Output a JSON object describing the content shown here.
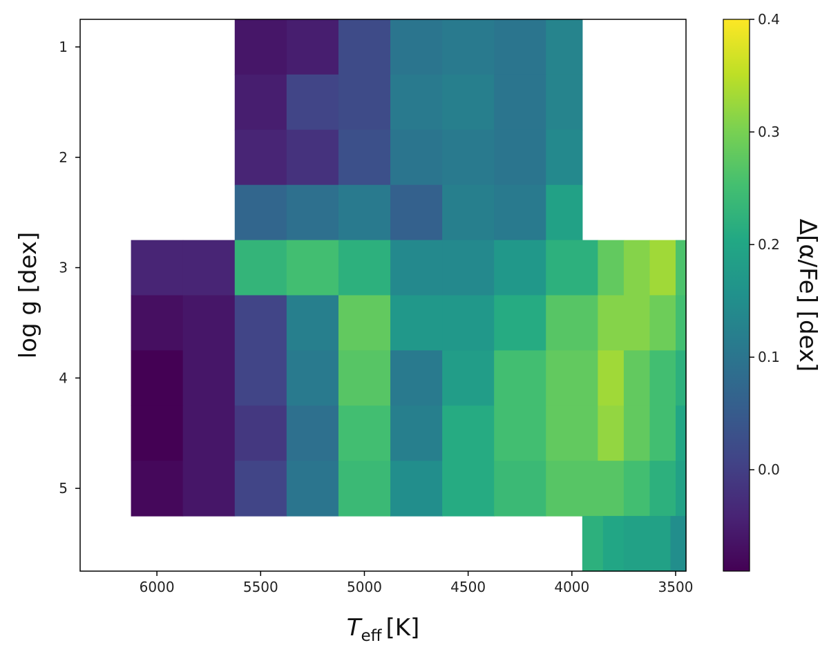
{
  "chart_data": {
    "type": "heatmap",
    "title": "",
    "xlabel": {
      "main": "T",
      "sub": "eff",
      "unit": "[K]"
    },
    "ylabel": "log g [dex]",
    "colorbar_label": "Δ[α/Fe] [dex]",
    "xlim": [
      6370,
      3450
    ],
    "ylim": [
      5.75,
      0.75
    ],
    "x_reversed": true,
    "y_reversed": true,
    "x_ticks": [
      {
        "value": 6000,
        "label": "6000"
      },
      {
        "value": 5500,
        "label": "5500"
      },
      {
        "value": 5000,
        "label": "5000"
      },
      {
        "value": 4500,
        "label": "4500"
      },
      {
        "value": 4000,
        "label": "4000"
      },
      {
        "value": 3500,
        "label": "3500"
      }
    ],
    "y_ticks": [
      {
        "value": 1,
        "label": "1"
      },
      {
        "value": 2,
        "label": "2"
      },
      {
        "value": 3,
        "label": "3"
      },
      {
        "value": 4,
        "label": "4"
      },
      {
        "value": 5,
        "label": "5"
      }
    ],
    "colorbar": {
      "min": -0.09,
      "max": 0.4,
      "colormap": "viridis",
      "ticks": [
        {
          "value": 0.0,
          "label": "0.0"
        },
        {
          "value": 0.1,
          "label": "0.1"
        },
        {
          "value": 0.2,
          "label": "0.2"
        },
        {
          "value": 0.3,
          "label": "0.3"
        },
        {
          "value": 0.4,
          "label": "0.4"
        }
      ]
    },
    "cells": [
      {
        "teff": [
          5625,
          5375
        ],
        "logg": [
          0.75,
          1.25
        ],
        "value": -0.06
      },
      {
        "teff": [
          5375,
          5125
        ],
        "logg": [
          0.75,
          1.25
        ],
        "value": -0.05
      },
      {
        "teff": [
          5125,
          4875
        ],
        "logg": [
          0.75,
          1.25
        ],
        "value": 0.02
      },
      {
        "teff": [
          4875,
          4625
        ],
        "logg": [
          0.75,
          1.25
        ],
        "value": 0.1
      },
      {
        "teff": [
          4625,
          4375
        ],
        "logg": [
          0.75,
          1.25
        ],
        "value": 0.11
      },
      {
        "teff": [
          4375,
          4125
        ],
        "logg": [
          0.75,
          1.25
        ],
        "value": 0.1
      },
      {
        "teff": [
          4125,
          3950
        ],
        "logg": [
          0.75,
          1.25
        ],
        "value": 0.13
      },
      {
        "teff": [
          5625,
          5375
        ],
        "logg": [
          1.25,
          1.75
        ],
        "value": -0.05
      },
      {
        "teff": [
          5375,
          5125
        ],
        "logg": [
          1.25,
          1.75
        ],
        "value": 0.01
      },
      {
        "teff": [
          5125,
          4875
        ],
        "logg": [
          1.25,
          1.75
        ],
        "value": 0.02
      },
      {
        "teff": [
          4875,
          4625
        ],
        "logg": [
          1.25,
          1.75
        ],
        "value": 0.11
      },
      {
        "teff": [
          4625,
          4375
        ],
        "logg": [
          1.25,
          1.75
        ],
        "value": 0.12
      },
      {
        "teff": [
          4375,
          4125
        ],
        "logg": [
          1.25,
          1.75
        ],
        "value": 0.1
      },
      {
        "teff": [
          4125,
          3950
        ],
        "logg": [
          1.25,
          1.75
        ],
        "value": 0.13
      },
      {
        "teff": [
          5625,
          5375
        ],
        "logg": [
          1.75,
          2.25
        ],
        "value": -0.04
      },
      {
        "teff": [
          5375,
          5125
        ],
        "logg": [
          1.75,
          2.25
        ],
        "value": -0.02
      },
      {
        "teff": [
          5125,
          4875
        ],
        "logg": [
          1.75,
          2.25
        ],
        "value": 0.03
      },
      {
        "teff": [
          4875,
          4625
        ],
        "logg": [
          1.75,
          2.25
        ],
        "value": 0.1
      },
      {
        "teff": [
          4625,
          4375
        ],
        "logg": [
          1.75,
          2.25
        ],
        "value": 0.11
      },
      {
        "teff": [
          4375,
          4125
        ],
        "logg": [
          1.75,
          2.25
        ],
        "value": 0.1
      },
      {
        "teff": [
          4125,
          3950
        ],
        "logg": [
          1.75,
          2.25
        ],
        "value": 0.14
      },
      {
        "teff": [
          5625,
          5375
        ],
        "logg": [
          2.25,
          2.75
        ],
        "value": 0.07
      },
      {
        "teff": [
          5375,
          5125
        ],
        "logg": [
          2.25,
          2.75
        ],
        "value": 0.09
      },
      {
        "teff": [
          5125,
          4875
        ],
        "logg": [
          2.25,
          2.75
        ],
        "value": 0.11
      },
      {
        "teff": [
          4875,
          4625
        ],
        "logg": [
          2.25,
          2.75
        ],
        "value": 0.06
      },
      {
        "teff": [
          4625,
          4375
        ],
        "logg": [
          2.25,
          2.75
        ],
        "value": 0.12
      },
      {
        "teff": [
          4375,
          4125
        ],
        "logg": [
          2.25,
          2.75
        ],
        "value": 0.11
      },
      {
        "teff": [
          4125,
          3950
        ],
        "logg": [
          2.25,
          2.75
        ],
        "value": 0.19
      },
      {
        "teff": [
          6125,
          5875
        ],
        "logg": [
          2.75,
          3.25
        ],
        "value": -0.04
      },
      {
        "teff": [
          5875,
          5625
        ],
        "logg": [
          2.75,
          3.25
        ],
        "value": -0.04
      },
      {
        "teff": [
          5625,
          5375
        ],
        "logg": [
          2.75,
          3.25
        ],
        "value": 0.23
      },
      {
        "teff": [
          5375,
          5125
        ],
        "logg": [
          2.75,
          3.25
        ],
        "value": 0.25
      },
      {
        "teff": [
          5125,
          4875
        ],
        "logg": [
          2.75,
          3.25
        ],
        "value": 0.22
      },
      {
        "teff": [
          4875,
          4625
        ],
        "logg": [
          2.75,
          3.25
        ],
        "value": 0.14
      },
      {
        "teff": [
          4625,
          4375
        ],
        "logg": [
          2.75,
          3.25
        ],
        "value": 0.14
      },
      {
        "teff": [
          4375,
          4125
        ],
        "logg": [
          2.75,
          3.25
        ],
        "value": 0.17
      },
      {
        "teff": [
          4125,
          3875
        ],
        "logg": [
          2.75,
          3.25
        ],
        "value": 0.22
      },
      {
        "teff": [
          3875,
          3750
        ],
        "logg": [
          2.75,
          3.25
        ],
        "value": 0.28
      },
      {
        "teff": [
          3750,
          3625
        ],
        "logg": [
          2.75,
          3.25
        ],
        "value": 0.31
      },
      {
        "teff": [
          3625,
          3500
        ],
        "logg": [
          2.75,
          3.25
        ],
        "value": 0.33
      },
      {
        "teff": [
          3500,
          3450
        ],
        "logg": [
          2.75,
          3.25
        ],
        "value": 0.26
      },
      {
        "teff": [
          6125,
          5875
        ],
        "logg": [
          3.25,
          3.75
        ],
        "value": -0.07
      },
      {
        "teff": [
          5875,
          5625
        ],
        "logg": [
          3.25,
          3.75
        ],
        "value": -0.06
      },
      {
        "teff": [
          5625,
          5375
        ],
        "logg": [
          3.25,
          3.75
        ],
        "value": 0.01
      },
      {
        "teff": [
          5375,
          5125
        ],
        "logg": [
          3.25,
          3.75
        ],
        "value": 0.12
      },
      {
        "teff": [
          5125,
          4875
        ],
        "logg": [
          3.25,
          3.75
        ],
        "value": 0.28
      },
      {
        "teff": [
          4875,
          4625
        ],
        "logg": [
          3.25,
          3.75
        ],
        "value": 0.17
      },
      {
        "teff": [
          4625,
          4375
        ],
        "logg": [
          3.25,
          3.75
        ],
        "value": 0.17
      },
      {
        "teff": [
          4375,
          4125
        ],
        "logg": [
          3.25,
          3.75
        ],
        "value": 0.21
      },
      {
        "teff": [
          4125,
          3875
        ],
        "logg": [
          3.25,
          3.75
        ],
        "value": 0.27
      },
      {
        "teff": [
          3875,
          3750
        ],
        "logg": [
          3.25,
          3.75
        ],
        "value": 0.31
      },
      {
        "teff": [
          3750,
          3625
        ],
        "logg": [
          3.25,
          3.75
        ],
        "value": 0.31
      },
      {
        "teff": [
          3625,
          3500
        ],
        "logg": [
          3.25,
          3.75
        ],
        "value": 0.29
      },
      {
        "teff": [
          3500,
          3450
        ],
        "logg": [
          3.25,
          3.75
        ],
        "value": 0.25
      },
      {
        "teff": [
          6125,
          5875
        ],
        "logg": [
          3.75,
          4.25
        ],
        "value": -0.09
      },
      {
        "teff": [
          5875,
          5625
        ],
        "logg": [
          3.75,
          4.25
        ],
        "value": -0.06
      },
      {
        "teff": [
          5625,
          5375
        ],
        "logg": [
          3.75,
          4.25
        ],
        "value": 0.01
      },
      {
        "teff": [
          5375,
          5125
        ],
        "logg": [
          3.75,
          4.25
        ],
        "value": 0.11
      },
      {
        "teff": [
          5125,
          4875
        ],
        "logg": [
          3.75,
          4.25
        ],
        "value": 0.27
      },
      {
        "teff": [
          4875,
          4625
        ],
        "logg": [
          3.75,
          4.25
        ],
        "value": 0.11
      },
      {
        "teff": [
          4625,
          4375
        ],
        "logg": [
          3.75,
          4.25
        ],
        "value": 0.18
      },
      {
        "teff": [
          4375,
          4125
        ],
        "logg": [
          3.75,
          4.25
        ],
        "value": 0.25
      },
      {
        "teff": [
          4125,
          3875
        ],
        "logg": [
          3.75,
          4.25
        ],
        "value": 0.28
      },
      {
        "teff": [
          3875,
          3750
        ],
        "logg": [
          3.75,
          4.25
        ],
        "value": 0.33
      },
      {
        "teff": [
          3750,
          3625
        ],
        "logg": [
          3.75,
          4.25
        ],
        "value": 0.28
      },
      {
        "teff": [
          3625,
          3500
        ],
        "logg": [
          3.75,
          4.25
        ],
        "value": 0.25
      },
      {
        "teff": [
          3500,
          3450
        ],
        "logg": [
          3.75,
          4.25
        ],
        "value": 0.22
      },
      {
        "teff": [
          6125,
          5875
        ],
        "logg": [
          4.25,
          4.75
        ],
        "value": -0.09
      },
      {
        "teff": [
          5875,
          5625
        ],
        "logg": [
          4.25,
          4.75
        ],
        "value": -0.06
      },
      {
        "teff": [
          5625,
          5375
        ],
        "logg": [
          4.25,
          4.75
        ],
        "value": -0.01
      },
      {
        "teff": [
          5375,
          5125
        ],
        "logg": [
          4.25,
          4.75
        ],
        "value": 0.09
      },
      {
        "teff": [
          5125,
          4875
        ],
        "logg": [
          4.25,
          4.75
        ],
        "value": 0.25
      },
      {
        "teff": [
          4875,
          4625
        ],
        "logg": [
          4.25,
          4.75
        ],
        "value": 0.12
      },
      {
        "teff": [
          4625,
          4375
        ],
        "logg": [
          4.25,
          4.75
        ],
        "value": 0.21
      },
      {
        "teff": [
          4375,
          4125
        ],
        "logg": [
          4.25,
          4.75
        ],
        "value": 0.25
      },
      {
        "teff": [
          4125,
          3875
        ],
        "logg": [
          4.25,
          4.75
        ],
        "value": 0.28
      },
      {
        "teff": [
          3875,
          3750
        ],
        "logg": [
          4.25,
          4.75
        ],
        "value": 0.32
      },
      {
        "teff": [
          3750,
          3625
        ],
        "logg": [
          4.25,
          4.75
        ],
        "value": 0.28
      },
      {
        "teff": [
          3625,
          3500
        ],
        "logg": [
          4.25,
          4.75
        ],
        "value": 0.25
      },
      {
        "teff": [
          3500,
          3450
        ],
        "logg": [
          4.25,
          4.75
        ],
        "value": 0.2
      },
      {
        "teff": [
          6125,
          5875
        ],
        "logg": [
          4.75,
          5.25
        ],
        "value": -0.08
      },
      {
        "teff": [
          5875,
          5625
        ],
        "logg": [
          4.75,
          5.25
        ],
        "value": -0.06
      },
      {
        "teff": [
          5625,
          5375
        ],
        "logg": [
          4.75,
          5.25
        ],
        "value": 0.01
      },
      {
        "teff": [
          5375,
          5125
        ],
        "logg": [
          4.75,
          5.25
        ],
        "value": 0.1
      },
      {
        "teff": [
          5125,
          4875
        ],
        "logg": [
          4.75,
          5.25
        ],
        "value": 0.24
      },
      {
        "teff": [
          4875,
          4625
        ],
        "logg": [
          4.75,
          5.25
        ],
        "value": 0.15
      },
      {
        "teff": [
          4625,
          4375
        ],
        "logg": [
          4.75,
          5.25
        ],
        "value": 0.21
      },
      {
        "teff": [
          4375,
          4125
        ],
        "logg": [
          4.75,
          5.25
        ],
        "value": 0.24
      },
      {
        "teff": [
          4125,
          3875
        ],
        "logg": [
          4.75,
          5.25
        ],
        "value": 0.27
      },
      {
        "teff": [
          3875,
          3750
        ],
        "logg": [
          4.75,
          5.25
        ],
        "value": 0.27
      },
      {
        "teff": [
          3750,
          3625
        ],
        "logg": [
          4.75,
          5.25
        ],
        "value": 0.25
      },
      {
        "teff": [
          3625,
          3500
        ],
        "logg": [
          4.75,
          5.25
        ],
        "value": 0.22
      },
      {
        "teff": [
          3500,
          3450
        ],
        "logg": [
          4.75,
          5.25
        ],
        "value": 0.19
      },
      {
        "teff": [
          3950,
          3850
        ],
        "logg": [
          5.25,
          5.75
        ],
        "value": 0.22
      },
      {
        "teff": [
          3850,
          3750
        ],
        "logg": [
          5.25,
          5.75
        ],
        "value": 0.2
      },
      {
        "teff": [
          3750,
          3625
        ],
        "logg": [
          5.25,
          5.75
        ],
        "value": 0.19
      },
      {
        "teff": [
          3625,
          3525
        ],
        "logg": [
          5.25,
          5.75
        ],
        "value": 0.19
      },
      {
        "teff": [
          3525,
          3450
        ],
        "logg": [
          5.25,
          5.75
        ],
        "value": 0.15
      }
    ]
  }
}
